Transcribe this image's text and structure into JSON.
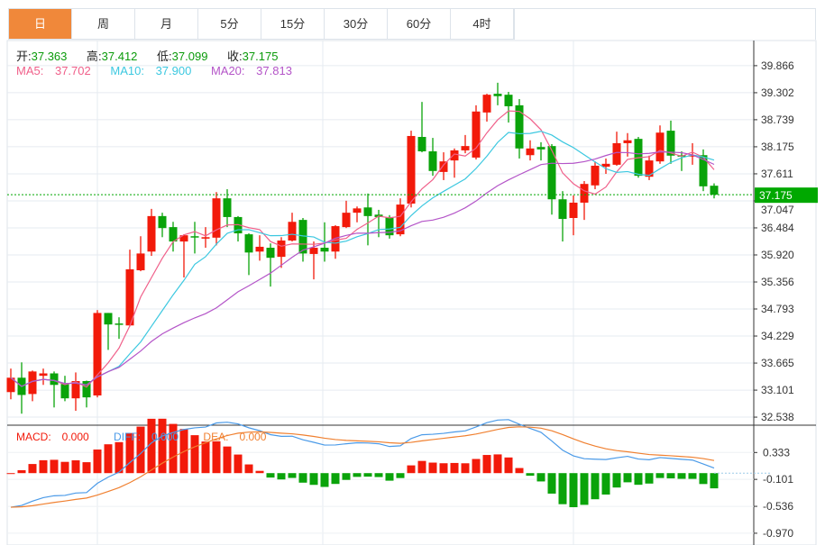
{
  "tabs": [
    {
      "label": "日",
      "active": true
    },
    {
      "label": "周"
    },
    {
      "label": "月"
    },
    {
      "label": "5分"
    },
    {
      "label": "15分"
    },
    {
      "label": "30分"
    },
    {
      "label": "60分"
    },
    {
      "label": "4时"
    }
  ],
  "ohlc_info": {
    "open_label": "开:",
    "open": "37.363",
    "high_label": "高:",
    "high": "37.412",
    "low_label": "低:",
    "low": "37.099",
    "close_label": "收:",
    "close": "37.175"
  },
  "ma_info": {
    "ma5_label": "MA5:",
    "ma5": "37.702",
    "ma10_label": "MA10:",
    "ma10": "37.900",
    "ma20_label": "MA20:",
    "ma20": "37.813"
  },
  "macd_info": {
    "macd_label": "MACD:",
    "macd": "0.000",
    "diff_label": "DIFF:",
    "diff": "0.000",
    "dea_label": "DEA:",
    "dea": "0.000"
  },
  "colors": {
    "up": "#f21a0a",
    "down": "#0aa30a",
    "ma5": "#f0608a",
    "ma10": "#3cc8e0",
    "ma20": "#b455c8",
    "diff": "#4a9ae8",
    "dea": "#f08030",
    "accent": "#f0883a",
    "last_price": "#00a800"
  },
  "chart_data": [
    {
      "type": "candlestick",
      "title": "",
      "ylim": [
        32.37,
        40.39
      ],
      "y_ticks": [
        "39.866",
        "39.302",
        "38.739",
        "38.175",
        "37.611",
        "37.047",
        "36.484",
        "35.920",
        "35.356",
        "34.793",
        "34.229",
        "33.665",
        "33.101",
        "32.538"
      ],
      "last_price": "37.175",
      "grid": true,
      "candles_ohlc": [
        [
          33.06,
          33.55,
          32.91,
          33.36
        ],
        [
          33.36,
          33.68,
          32.61,
          33.0
        ],
        [
          33.02,
          33.51,
          32.87,
          33.49
        ],
        [
          33.4,
          33.55,
          33.21,
          33.45
        ],
        [
          33.45,
          33.49,
          32.74,
          33.21
        ],
        [
          33.23,
          33.4,
          32.87,
          32.93
        ],
        [
          32.93,
          33.47,
          32.67,
          33.29
        ],
        [
          33.29,
          33.3,
          32.74,
          32.95
        ],
        [
          32.99,
          34.77,
          32.95,
          34.71
        ],
        [
          34.71,
          34.71,
          33.94,
          34.47
        ],
        [
          34.49,
          34.62,
          34.17,
          34.47
        ],
        [
          34.45,
          36.03,
          34.43,
          35.62
        ],
        [
          35.6,
          36.31,
          35.58,
          35.95
        ],
        [
          35.99,
          36.88,
          35.9,
          36.73
        ],
        [
          36.73,
          36.8,
          36.29,
          36.48
        ],
        [
          36.5,
          36.61,
          35.99,
          36.2
        ],
        [
          36.2,
          36.35,
          35.45,
          36.33
        ],
        [
          36.31,
          36.61,
          35.95,
          36.29
        ],
        [
          36.26,
          36.5,
          36.07,
          36.29
        ],
        [
          36.28,
          37.23,
          36.12,
          37.1
        ],
        [
          37.1,
          37.29,
          36.5,
          36.71
        ],
        [
          36.71,
          36.73,
          36.2,
          36.37
        ],
        [
          36.35,
          36.37,
          35.5,
          35.97
        ],
        [
          35.99,
          36.33,
          35.8,
          36.09
        ],
        [
          36.07,
          36.16,
          35.26,
          35.86
        ],
        [
          35.88,
          36.29,
          35.65,
          36.22
        ],
        [
          36.22,
          36.8,
          36.2,
          36.61
        ],
        [
          36.65,
          36.69,
          35.78,
          35.95
        ],
        [
          35.94,
          36.2,
          35.41,
          36.07
        ],
        [
          36.07,
          36.6,
          35.78,
          35.99
        ],
        [
          35.99,
          36.54,
          35.84,
          36.52
        ],
        [
          36.5,
          37.05,
          36.48,
          36.8
        ],
        [
          36.8,
          36.93,
          36.6,
          36.89
        ],
        [
          36.91,
          37.2,
          36.12,
          36.73
        ],
        [
          36.76,
          36.86,
          36.29,
          36.71
        ],
        [
          36.71,
          36.75,
          36.26,
          36.33
        ],
        [
          36.35,
          37.1,
          36.31,
          36.97
        ],
        [
          36.99,
          38.51,
          36.91,
          38.4
        ],
        [
          38.38,
          39.11,
          38.06,
          38.08
        ],
        [
          38.08,
          38.36,
          37.57,
          37.67
        ],
        [
          37.65,
          38.06,
          37.48,
          37.87
        ],
        [
          37.89,
          38.14,
          37.53,
          38.1
        ],
        [
          38.1,
          38.42,
          38.04,
          38.19
        ],
        [
          37.95,
          39.04,
          37.91,
          38.91
        ],
        [
          38.89,
          39.28,
          38.7,
          39.26
        ],
        [
          39.28,
          39.51,
          39.04,
          39.23
        ],
        [
          39.26,
          39.32,
          38.68,
          39.02
        ],
        [
          39.04,
          39.17,
          37.93,
          38.14
        ],
        [
          38.0,
          38.31,
          37.89,
          38.14
        ],
        [
          38.17,
          38.27,
          37.89,
          38.12
        ],
        [
          38.19,
          38.23,
          36.76,
          37.08
        ],
        [
          37.08,
          37.25,
          36.2,
          36.67
        ],
        [
          36.69,
          37.16,
          36.33,
          37.01
        ],
        [
          37.01,
          37.46,
          36.65,
          37.4
        ],
        [
          37.37,
          37.87,
          37.29,
          37.78
        ],
        [
          37.76,
          37.93,
          37.61,
          37.82
        ],
        [
          37.8,
          38.49,
          37.78,
          38.25
        ],
        [
          38.25,
          38.46,
          37.97,
          38.31
        ],
        [
          38.34,
          38.38,
          37.53,
          37.57
        ],
        [
          37.55,
          37.99,
          37.48,
          37.89
        ],
        [
          37.87,
          38.62,
          37.82,
          38.47
        ],
        [
          38.51,
          38.72,
          37.82,
          37.99
        ],
        [
          38.0,
          38.08,
          37.67,
          37.97
        ],
        [
          37.99,
          38.25,
          37.8,
          38.0
        ],
        [
          38.0,
          38.12,
          37.25,
          37.35
        ],
        [
          37.363,
          37.412,
          37.099,
          37.175
        ]
      ],
      "moving_averages": [
        "MA5",
        "MA10",
        "MA20"
      ]
    },
    {
      "type": "macd",
      "ylim": [
        -1.16,
        0.73
      ],
      "y_ticks": [
        "0.333",
        "-0.101",
        "-0.536",
        "-0.970"
      ],
      "series": [
        "MACD",
        "DIFF",
        "DEA"
      ]
    }
  ]
}
